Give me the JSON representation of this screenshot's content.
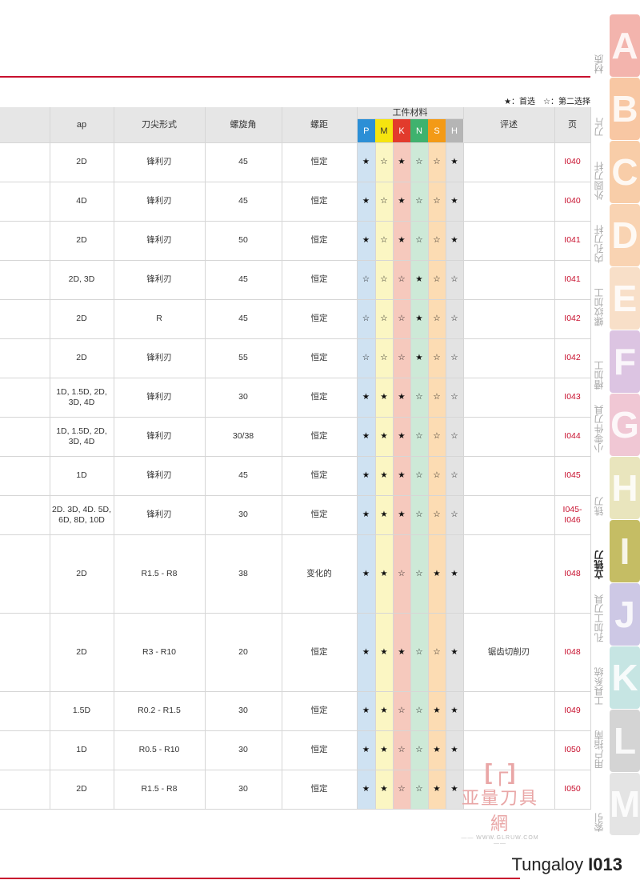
{
  "legend": {
    "text": "★：首选　☆：第二选择"
  },
  "header": {
    "ap": "ap",
    "tip": "刀尖形式",
    "helix": "螺旋角",
    "pitch": "螺距",
    "material_group": "工件材料",
    "materials": [
      "P",
      "M",
      "K",
      "N",
      "S",
      "H"
    ],
    "comment": "评述",
    "page": "页"
  },
  "colors": {
    "P": "#2c8fd6",
    "M": "#f6e40f",
    "K": "#e23b2c",
    "N": "#3fb26e",
    "S": "#f39a16",
    "H": "#b5b5b5",
    "P_light": "#cfe2f2",
    "M_light": "#fbf6c3",
    "K_light": "#f6c9bd",
    "N_light": "#cde9d7",
    "S_light": "#fcdcb3",
    "H_light": "#e3e3e3",
    "accent": "#c8102e"
  },
  "rows": [
    {
      "ap": "2D",
      "tip": "锋利刃",
      "helix": "45",
      "pitch": "恒定",
      "stars": [
        "★",
        "☆",
        "★",
        "☆",
        "☆",
        "★"
      ],
      "comment": "",
      "page": "I040"
    },
    {
      "ap": "4D",
      "tip": "锋利刃",
      "helix": "45",
      "pitch": "恒定",
      "stars": [
        "★",
        "☆",
        "★",
        "☆",
        "☆",
        "★"
      ],
      "comment": "",
      "page": "I040"
    },
    {
      "ap": "2D",
      "tip": "锋利刃",
      "helix": "50",
      "pitch": "恒定",
      "stars": [
        "★",
        "☆",
        "★",
        "☆",
        "☆",
        "★"
      ],
      "comment": "",
      "page": "I041"
    },
    {
      "ap": "2D, 3D",
      "tip": "锋利刃",
      "helix": "45",
      "pitch": "恒定",
      "stars": [
        "☆",
        "☆",
        "☆",
        "★",
        "☆",
        "☆"
      ],
      "comment": "",
      "page": "I041"
    },
    {
      "ap": "2D",
      "tip": "R",
      "helix": "45",
      "pitch": "恒定",
      "stars": [
        "☆",
        "☆",
        "☆",
        "★",
        "☆",
        "☆"
      ],
      "comment": "",
      "page": "I042"
    },
    {
      "ap": "2D",
      "tip": "锋利刃",
      "helix": "55",
      "pitch": "恒定",
      "stars": [
        "☆",
        "☆",
        "☆",
        "★",
        "☆",
        "☆"
      ],
      "comment": "",
      "page": "I042"
    },
    {
      "ap": "1D, 1.5D, 2D,\n3D, 4D",
      "tip": "锋利刃",
      "helix": "30",
      "pitch": "恒定",
      "stars": [
        "★",
        "★",
        "★",
        "☆",
        "☆",
        "☆"
      ],
      "comment": "",
      "page": "I043"
    },
    {
      "ap": "1D, 1.5D, 2D,\n3D, 4D",
      "tip": "锋利刃",
      "helix": "30/38",
      "pitch": "恒定",
      "stars": [
        "★",
        "★",
        "★",
        "☆",
        "☆",
        "☆"
      ],
      "comment": "",
      "page": "I044"
    },
    {
      "ap": "1D",
      "tip": "锋利刃",
      "helix": "45",
      "pitch": "恒定",
      "stars": [
        "★",
        "★",
        "★",
        "☆",
        "☆",
        "☆"
      ],
      "comment": "",
      "page": "I045"
    },
    {
      "ap": "2D. 3D, 4D. 5D,\n6D, 8D, 10D",
      "tip": "锋利刃",
      "helix": "30",
      "pitch": "恒定",
      "stars": [
        "★",
        "★",
        "★",
        "☆",
        "☆",
        "☆"
      ],
      "comment": "",
      "page": "I045-\nI046"
    },
    {
      "ap": "2D",
      "tip": "R1.5 - R8",
      "helix": "38",
      "pitch": "变化的",
      "stars": [
        "★",
        "★",
        "☆",
        "☆",
        "★",
        "★"
      ],
      "comment": "",
      "page": "I048",
      "tall": true
    },
    {
      "ap": "2D",
      "tip": "R3 - R10",
      "helix": "20",
      "pitch": "恒定",
      "stars": [
        "★",
        "★",
        "★",
        "☆",
        "☆",
        "★"
      ],
      "comment": "锯齿切削刃",
      "page": "I048",
      "tall": true
    },
    {
      "ap": "1.5D",
      "tip": "R0.2 - R1.5",
      "helix": "30",
      "pitch": "恒定",
      "stars": [
        "★",
        "★",
        "☆",
        "☆",
        "★",
        "★"
      ],
      "comment": "",
      "page": "I049"
    },
    {
      "ap": "1D",
      "tip": "R0.5 - R10",
      "helix": "30",
      "pitch": "恒定",
      "stars": [
        "★",
        "★",
        "☆",
        "☆",
        "★",
        "★"
      ],
      "comment": "",
      "page": "I050"
    },
    {
      "ap": "2D",
      "tip": "R1.5 - R8",
      "helix": "30",
      "pitch": "恒定",
      "stars": [
        "★",
        "★",
        "☆",
        "☆",
        "★",
        "★"
      ],
      "comment": "",
      "page": "I050"
    }
  ],
  "tabs": [
    {
      "letter": "A",
      "label": "材质",
      "color": "#f3b4ad"
    },
    {
      "letter": "B",
      "label": "刀片",
      "color": "#f8c7a3"
    },
    {
      "letter": "C",
      "label": "外圆刀杆",
      "color": "#f8cda8"
    },
    {
      "letter": "D",
      "label": "内孔刀杆",
      "color": "#f9d3b2"
    },
    {
      "letter": "E",
      "label": "螺纹加工",
      "color": "#f8dfc8"
    },
    {
      "letter": "F",
      "label": "槽加工",
      "color": "#dcc4e2"
    },
    {
      "letter": "G",
      "label": "小零件刀具",
      "color": "#f0c7d4"
    },
    {
      "letter": "H",
      "label": "铣刀",
      "color": "#e9e5bd"
    },
    {
      "letter": "I",
      "label": "立铣刀",
      "color": "#c5bd64",
      "active": true
    },
    {
      "letter": "J",
      "label": "孔加工刀具",
      "color": "#cdc8e5"
    },
    {
      "letter": "K",
      "label": "工具系统",
      "color": "#c6e5e3"
    },
    {
      "letter": "L",
      "label": "用户指南",
      "color": "#d4d4d4"
    },
    {
      "letter": "M",
      "label": "索引",
      "color": "#e4e4e4"
    }
  ],
  "watermark": {
    "mark": "[┌]",
    "name": "亚量刀具網",
    "url": "—— WWW.GLRUW.COM ——"
  },
  "footer": {
    "brand": "Tungaloy",
    "page": "I013"
  }
}
